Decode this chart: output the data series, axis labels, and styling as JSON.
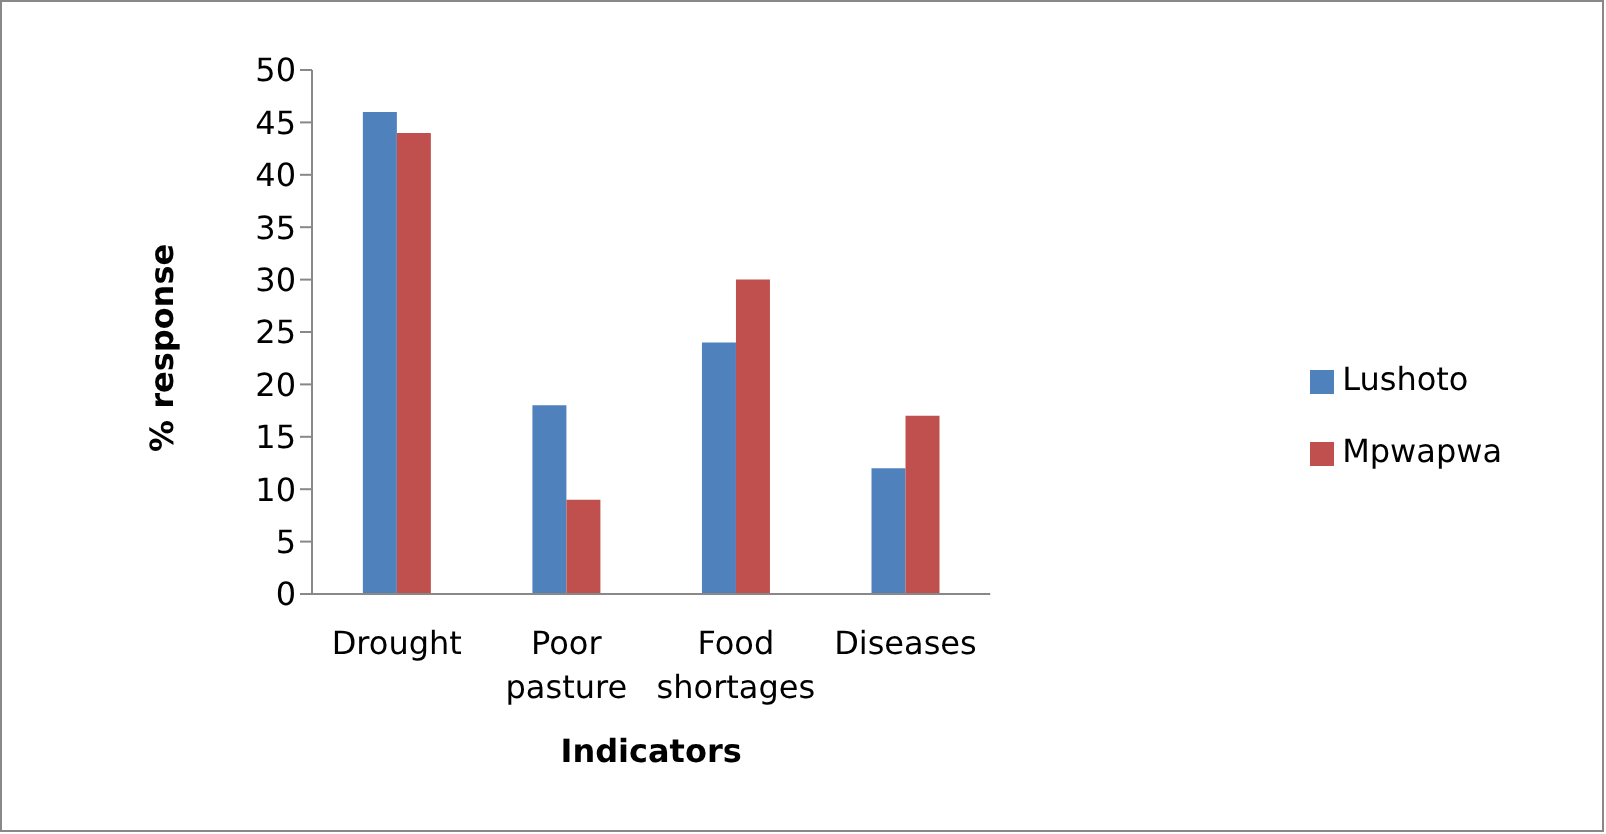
{
  "chart_data": {
    "type": "bar",
    "xlabel": "Indicators",
    "ylabel": "% response",
    "categories": [
      "Drought",
      "Poor pasture",
      "Food shortages",
      "Diseases"
    ],
    "series": [
      {
        "name": "Lushoto",
        "color": "#4f81bd",
        "values": [
          46,
          18,
          24,
          12
        ]
      },
      {
        "name": "Mpwapwa",
        "color": "#c0504d",
        "values": [
          44,
          9,
          30,
          17
        ]
      }
    ],
    "ylim": [
      0,
      50
    ],
    "yticks": [
      0,
      5,
      10,
      15,
      20,
      25,
      30,
      35,
      40,
      45,
      50
    ],
    "grid": false,
    "legend": "right"
  }
}
